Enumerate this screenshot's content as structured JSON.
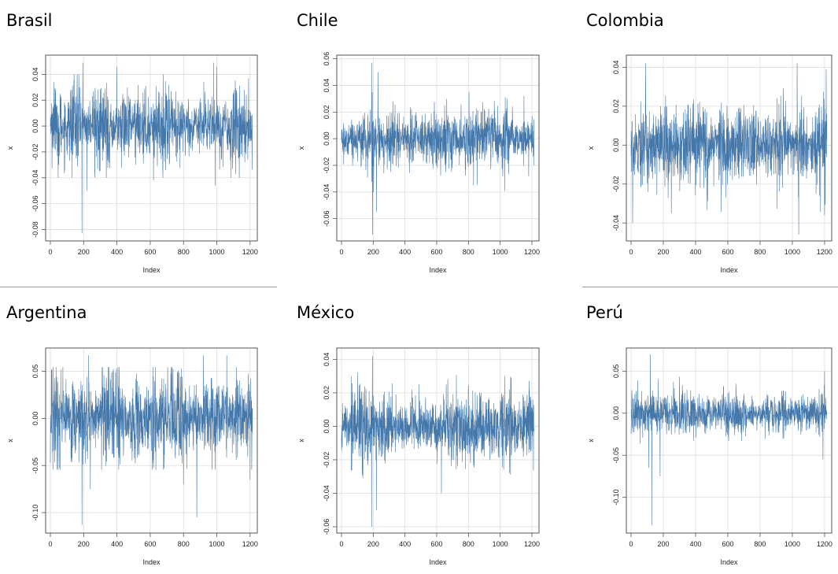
{
  "panels": [
    {
      "title": "Brasil"
    },
    {
      "title": "Chile"
    },
    {
      "title": "Colombia"
    },
    {
      "title": "Argentina"
    },
    {
      "title": "México"
    },
    {
      "title": "Perú"
    }
  ],
  "colors": {
    "series": "#4477aa",
    "grid": "#dddddd",
    "frame": "#555555"
  },
  "chart_data": [
    {
      "type": "line",
      "title": "Brasil",
      "xlabel": "Index",
      "ylabel": "x",
      "xlim": [
        0,
        1215
      ],
      "ylim": [
        -0.084,
        0.05
      ],
      "xticks": [
        0,
        200,
        400,
        600,
        800,
        1000,
        1200
      ],
      "yticks": [
        -0.08,
        -0.06,
        -0.04,
        -0.02,
        0.0,
        0.02,
        0.04
      ],
      "ytick_labels": [
        "-0.08",
        "-0.06",
        "-0.04",
        "-0.02",
        "0.00",
        "0.02",
        "0.04"
      ],
      "n": 1215,
      "volatility": 0.0115,
      "spikes": [
        [
          190,
          -0.083
        ],
        [
          195,
          0.049
        ],
        [
          220,
          -0.05
        ],
        [
          400,
          0.046
        ],
        [
          980,
          0.049
        ],
        [
          990,
          -0.046
        ],
        [
          1000,
          0.046
        ],
        [
          620,
          -0.042
        ]
      ],
      "grid": true
    },
    {
      "type": "line",
      "title": "Chile",
      "xlabel": "Index",
      "ylabel": "x",
      "xlim": [
        0,
        1215
      ],
      "ylim": [
        -0.072,
        0.058
      ],
      "xticks": [
        0,
        200,
        400,
        600,
        800,
        1000,
        1200
      ],
      "yticks": [
        -0.06,
        -0.04,
        -0.02,
        0.0,
        0.02,
        0.04,
        0.06
      ],
      "ytick_labels": [
        "-0.06",
        "-0.04",
        "-0.02",
        "0.00",
        "0.02",
        "0.04",
        "0.06"
      ],
      "n": 1215,
      "volatility": 0.0085,
      "spikes": [
        [
          190,
          0.057
        ],
        [
          195,
          -0.072
        ],
        [
          220,
          -0.055
        ],
        [
          230,
          0.05
        ],
        [
          1150,
          0.032
        ],
        [
          1180,
          -0.028
        ],
        [
          650,
          0.025
        ]
      ],
      "grid": true
    },
    {
      "type": "line",
      "title": "Colombia",
      "xlabel": "Index",
      "ylabel": "x",
      "xlim": [
        0,
        1215
      ],
      "ylim": [
        -0.046,
        0.043
      ],
      "xticks": [
        0,
        200,
        400,
        600,
        800,
        1000,
        1200
      ],
      "yticks": [
        -0.04,
        -0.02,
        0.0,
        0.02,
        0.04
      ],
      "ytick_labels": [
        "-0.04",
        "-0.02",
        "0.00",
        "0.02",
        "0.04"
      ],
      "n": 1215,
      "volatility": 0.0085,
      "spikes": [
        [
          10,
          -0.04
        ],
        [
          90,
          0.042
        ],
        [
          1030,
          0.042
        ],
        [
          1040,
          -0.046
        ],
        [
          1210,
          0.039
        ],
        [
          1200,
          -0.036
        ],
        [
          250,
          -0.035
        ]
      ],
      "grid": true
    },
    {
      "type": "line",
      "title": "Argentina",
      "xlabel": "Index",
      "ylabel": "x",
      "xlim": [
        0,
        1215
      ],
      "ylim": [
        -0.115,
        0.068
      ],
      "xticks": [
        0,
        200,
        400,
        600,
        800,
        1000,
        1200
      ],
      "yticks": [
        -0.1,
        -0.05,
        0.0,
        0.05
      ],
      "ytick_labels": [
        "-0.10",
        "-0.05",
        "0.00",
        "0.05"
      ],
      "n": 1215,
      "volatility": 0.021,
      "spikes": [
        [
          190,
          -0.113
        ],
        [
          230,
          0.067
        ],
        [
          240,
          -0.075
        ],
        [
          880,
          -0.105
        ],
        [
          920,
          0.067
        ],
        [
          1060,
          0.067
        ],
        [
          1200,
          -0.065
        ],
        [
          800,
          -0.07
        ]
      ],
      "grid": true
    },
    {
      "type": "line",
      "title": "México",
      "xlabel": "Index",
      "ylabel": "x",
      "xlim": [
        0,
        1215
      ],
      "ylim": [
        -0.06,
        0.043
      ],
      "xticks": [
        0,
        200,
        400,
        600,
        800,
        1000,
        1200
      ],
      "yticks": [
        -0.06,
        -0.04,
        -0.02,
        0.0,
        0.02,
        0.04
      ],
      "ytick_labels": [
        "-0.06",
        "-0.04",
        "-0.02",
        "0.00",
        "0.02",
        "0.04"
      ],
      "n": 1215,
      "volatility": 0.0085,
      "spikes": [
        [
          190,
          -0.06
        ],
        [
          195,
          0.042
        ],
        [
          220,
          -0.05
        ],
        [
          630,
          -0.04
        ],
        [
          1030,
          0.03
        ],
        [
          660,
          0.025
        ]
      ],
      "grid": true
    },
    {
      "type": "line",
      "title": "Perú",
      "xlabel": "Index",
      "ylabel": "x",
      "xlim": [
        0,
        1215
      ],
      "ylim": [
        -0.135,
        0.07
      ],
      "xticks": [
        0,
        200,
        400,
        600,
        800,
        1000,
        1200
      ],
      "yticks": [
        -0.1,
        -0.05,
        0.0,
        0.05
      ],
      "ytick_labels": [
        "-0.10",
        "-0.05",
        "0.00",
        "0.05"
      ],
      "n": 1215,
      "volatility": 0.011,
      "spikes": [
        [
          120,
          0.07
        ],
        [
          130,
          -0.133
        ],
        [
          180,
          -0.075
        ],
        [
          110,
          -0.065
        ],
        [
          1200,
          0.05
        ],
        [
          1190,
          -0.055
        ],
        [
          650,
          0.035
        ]
      ],
      "grid": true
    }
  ]
}
